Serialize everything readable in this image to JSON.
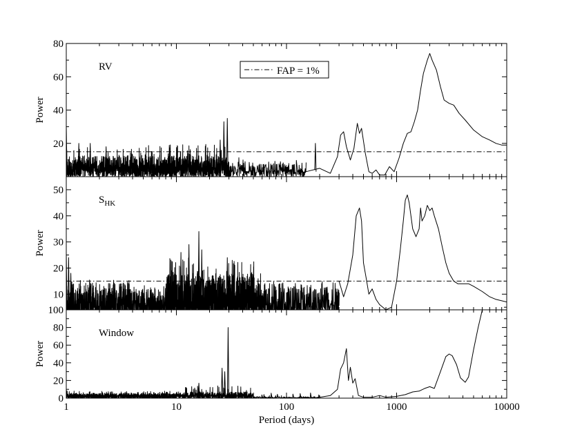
{
  "figure": {
    "xlabel": "Period (days)",
    "legend_label": "FAP = 1%"
  },
  "chart_data": [
    {
      "type": "line",
      "panel_label": "RV",
      "ylabel": "Power",
      "xscale": "log",
      "xlim": [
        1,
        10000
      ],
      "ylim": [
        0,
        80
      ],
      "yticks": [
        20,
        40,
        60,
        80
      ],
      "fap_level": 15,
      "legend": "top-center",
      "noise_segments": [
        {
          "from": 1,
          "to": 3,
          "mean": 7,
          "peak": 18,
          "density": 140,
          "seed": 11
        },
        {
          "from": 3,
          "to": 30,
          "mean": 7,
          "peak": 20,
          "density": 160,
          "seed": 12
        },
        {
          "from": 30,
          "to": 150,
          "mean": 5,
          "peak": 12,
          "density": 60,
          "seed": 13
        }
      ],
      "peaks": [
        {
          "x": 1.0,
          "y": 31
        },
        {
          "x": 1.3,
          "y": 20
        },
        {
          "x": 1.65,
          "y": 20
        },
        {
          "x": 2.3,
          "y": 18
        },
        {
          "x": 27,
          "y": 33
        },
        {
          "x": 29,
          "y": 35
        },
        {
          "x": 25,
          "y": 22
        },
        {
          "x": 183,
          "y": 20
        }
      ],
      "series": [
        {
          "values_x": [
            150,
            200,
            250,
            290,
            310,
            330,
            350,
            380,
            410,
            440,
            460,
            480,
            520,
            560,
            600,
            650,
            700,
            780,
            860,
            950,
            1050,
            1150,
            1250,
            1350,
            1450,
            1550,
            1650,
            1750,
            1900,
            2000,
            2100,
            2300,
            2500,
            2700,
            3000,
            3300,
            3700,
            4200,
            5000,
            6000,
            7000,
            8000,
            9000,
            10000
          ],
          "values_y": [
            3,
            5,
            2,
            12,
            25,
            27,
            18,
            10,
            17,
            32,
            26,
            29,
            14,
            3,
            2,
            4,
            1,
            1,
            6,
            3,
            11,
            20,
            26,
            27,
            33,
            40,
            52,
            62,
            70,
            74,
            70,
            64,
            54,
            46,
            44,
            43,
            38,
            34,
            28,
            24,
            22,
            20,
            19,
            19
          ]
        }
      ]
    },
    {
      "type": "line",
      "panel_label": "S",
      "panel_label_sub": "HK",
      "ylabel": "Power",
      "xscale": "log",
      "xlim": [
        1,
        10000
      ],
      "ylim": [
        4,
        55
      ],
      "yticks": [
        10,
        20,
        30,
        40,
        50
      ],
      "fap_level": 15,
      "noise_segments": [
        {
          "from": 1,
          "to": 4,
          "mean": 8,
          "peak": 16,
          "density": 140,
          "seed": 21
        },
        {
          "from": 4,
          "to": 8,
          "mean": 7,
          "peak": 14,
          "density": 100,
          "seed": 22
        },
        {
          "from": 8,
          "to": 60,
          "mean": 10,
          "peak": 24,
          "density": 200,
          "seed": 23
        },
        {
          "from": 60,
          "to": 300,
          "mean": 8,
          "peak": 15,
          "density": 80,
          "seed": 24
        }
      ],
      "peaks": [
        {
          "x": 1.0,
          "y": 26
        },
        {
          "x": 1.05,
          "y": 24
        },
        {
          "x": 1.1,
          "y": 18
        },
        {
          "x": 13,
          "y": 29
        },
        {
          "x": 16,
          "y": 34
        },
        {
          "x": 17,
          "y": 27
        },
        {
          "x": 11,
          "y": 26
        },
        {
          "x": 29,
          "y": 24
        }
      ],
      "series": [
        {
          "values_x": [
            300,
            330,
            360,
            400,
            430,
            460,
            480,
            500,
            530,
            560,
            600,
            650,
            700,
            800,
            900,
            1000,
            1080,
            1150,
            1200,
            1250,
            1300,
            1400,
            1500,
            1600,
            1650,
            1700,
            1800,
            1900,
            2000,
            2100,
            2200,
            2400,
            2600,
            2800,
            3000,
            3300,
            3600,
            4000,
            4500,
            5000,
            6000,
            7000,
            8000,
            10000
          ],
          "values_y": [
            15,
            9,
            14,
            25,
            40,
            43,
            38,
            22,
            16,
            10,
            12,
            8,
            6,
            4,
            5,
            15,
            27,
            38,
            46,
            48,
            45,
            35,
            32,
            35,
            43,
            38,
            40,
            44,
            42,
            43,
            40,
            35,
            28,
            22,
            18,
            15,
            14,
            14,
            14,
            13,
            11,
            9,
            8,
            7
          ]
        }
      ]
    },
    {
      "type": "line",
      "panel_label": "Window",
      "ylabel": "Power",
      "xscale": "log",
      "xlim": [
        1,
        10000
      ],
      "ylim": [
        0,
        100
      ],
      "yticks": [
        0,
        20,
        40,
        60,
        80,
        100
      ],
      "noise_segments": [
        {
          "from": 1,
          "to": 10,
          "mean": 3,
          "peak": 8,
          "density": 180,
          "seed": 31
        },
        {
          "from": 10,
          "to": 50,
          "mean": 4,
          "peak": 14,
          "density": 140,
          "seed": 32
        },
        {
          "from": 50,
          "to": 200,
          "mean": 1,
          "peak": 6,
          "density": 40,
          "seed": 33
        }
      ],
      "peaks": [
        {
          "x": 1.0,
          "y": 10
        },
        {
          "x": 16,
          "y": 17
        },
        {
          "x": 26,
          "y": 34
        },
        {
          "x": 29.5,
          "y": 80
        },
        {
          "x": 27.5,
          "y": 30
        }
      ],
      "series": [
        {
          "values_x": [
            200,
            250,
            290,
            310,
            330,
            350,
            365,
            380,
            400,
            420,
            450,
            500,
            600,
            700,
            800,
            1000,
            1200,
            1400,
            1600,
            1800,
            2000,
            2200,
            2500,
            2800,
            3000,
            3200,
            3500,
            3800,
            4200,
            4500,
            5000,
            5500,
            6000
          ],
          "values_y": [
            1,
            3,
            10,
            33,
            40,
            56,
            20,
            35,
            17,
            22,
            3,
            1,
            1,
            3,
            1,
            2,
            4,
            7,
            8,
            11,
            13,
            11,
            30,
            47,
            50,
            48,
            38,
            23,
            18,
            24,
            55,
            80,
            100
          ]
        }
      ]
    }
  ]
}
